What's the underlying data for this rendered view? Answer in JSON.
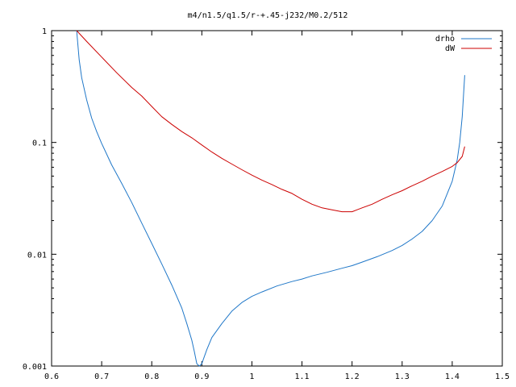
{
  "chart_data": {
    "type": "line",
    "title": "m4/n1.5/q1.5/r-+.45-j232/M0.2/512",
    "xlabel": "",
    "ylabel": "",
    "xlim": [
      0.6,
      1.5
    ],
    "ylim": [
      0.001,
      1
    ],
    "yscale": "log",
    "grid": false,
    "legend_position": "top-right",
    "xticks": [
      {
        "value": 0.6,
        "label": "0.6"
      },
      {
        "value": 0.7,
        "label": "0.7"
      },
      {
        "value": 0.8,
        "label": "0.8"
      },
      {
        "value": 0.9,
        "label": "0.9"
      },
      {
        "value": 1.0,
        "label": "1"
      },
      {
        "value": 1.1,
        "label": "1.1"
      },
      {
        "value": 1.2,
        "label": "1.2"
      },
      {
        "value": 1.3,
        "label": "1.3"
      },
      {
        "value": 1.4,
        "label": "1.4"
      },
      {
        "value": 1.5,
        "label": "1.5"
      }
    ],
    "yticks": [
      {
        "value": 1,
        "label": "1"
      },
      {
        "value": 0.1,
        "label": "0.1"
      },
      {
        "value": 0.01,
        "label": "0.01"
      },
      {
        "value": 0.001,
        "label": "0.001"
      }
    ],
    "series": [
      {
        "name": "drho",
        "color": "#1f77c8",
        "x": [
          0.65,
          0.655,
          0.66,
          0.67,
          0.68,
          0.69,
          0.7,
          0.72,
          0.74,
          0.76,
          0.78,
          0.8,
          0.82,
          0.84,
          0.86,
          0.87,
          0.88,
          0.885,
          0.89,
          0.895,
          0.9,
          0.91,
          0.92,
          0.94,
          0.96,
          0.98,
          1.0,
          1.02,
          1.05,
          1.08,
          1.1,
          1.12,
          1.15,
          1.18,
          1.2,
          1.22,
          1.25,
          1.28,
          1.3,
          1.32,
          1.34,
          1.36,
          1.38,
          1.4,
          1.41,
          1.415,
          1.42,
          1.425
        ],
        "y": [
          1.0,
          0.55,
          0.38,
          0.24,
          0.165,
          0.125,
          0.098,
          0.063,
          0.043,
          0.029,
          0.019,
          0.0125,
          0.0082,
          0.0053,
          0.0033,
          0.0024,
          0.0017,
          0.00135,
          0.00105,
          0.001,
          0.00105,
          0.0014,
          0.0018,
          0.0024,
          0.0031,
          0.0037,
          0.0042,
          0.0046,
          0.0052,
          0.0057,
          0.006,
          0.0064,
          0.0069,
          0.0075,
          0.0079,
          0.0085,
          0.0095,
          0.0108,
          0.012,
          0.0137,
          0.016,
          0.02,
          0.027,
          0.045,
          0.07,
          0.1,
          0.17,
          0.4
        ]
      },
      {
        "name": "dW",
        "color": "#cc0000",
        "x": [
          0.65,
          0.67,
          0.7,
          0.73,
          0.76,
          0.78,
          0.8,
          0.82,
          0.84,
          0.86,
          0.88,
          0.9,
          0.92,
          0.94,
          0.96,
          0.98,
          1.0,
          1.02,
          1.04,
          1.06,
          1.08,
          1.1,
          1.12,
          1.14,
          1.16,
          1.18,
          1.2,
          1.21,
          1.22,
          1.24,
          1.26,
          1.28,
          1.3,
          1.32,
          1.34,
          1.36,
          1.38,
          1.4,
          1.41,
          1.42,
          1.425
        ],
        "y": [
          1.0,
          0.8,
          0.58,
          0.42,
          0.31,
          0.26,
          0.21,
          0.17,
          0.145,
          0.125,
          0.11,
          0.095,
          0.082,
          0.072,
          0.064,
          0.057,
          0.051,
          0.046,
          0.042,
          0.038,
          0.035,
          0.031,
          0.028,
          0.026,
          0.025,
          0.024,
          0.024,
          0.025,
          0.026,
          0.028,
          0.031,
          0.034,
          0.037,
          0.041,
          0.045,
          0.05,
          0.055,
          0.061,
          0.066,
          0.075,
          0.092
        ]
      }
    ]
  }
}
